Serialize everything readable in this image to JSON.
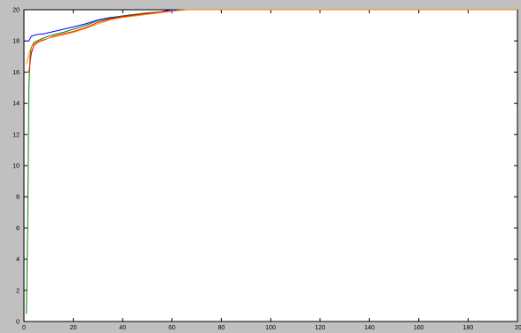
{
  "chart_data": {
    "type": "line",
    "title": "",
    "xlabel": "",
    "ylabel": "",
    "xlim": [
      0,
      200
    ],
    "ylim": [
      0,
      20
    ],
    "xticks": [
      0,
      20,
      40,
      60,
      80,
      100,
      120,
      140,
      160,
      180,
      200
    ],
    "yticks": [
      0,
      2,
      4,
      6,
      8,
      10,
      12,
      14,
      16,
      18,
      20
    ],
    "grid": false,
    "legend": "none",
    "series": [
      {
        "color": "#0000ff",
        "x": [
          1,
          2,
          3,
          5,
          8,
          12,
          16,
          20,
          25,
          30,
          35,
          40,
          45,
          50,
          55,
          58,
          60,
          65,
          70,
          75,
          80,
          200
        ],
        "y": [
          18.0,
          18.0,
          18.3,
          18.4,
          18.45,
          18.6,
          18.75,
          18.9,
          19.1,
          19.35,
          19.5,
          19.6,
          19.7,
          19.75,
          19.85,
          19.95,
          20.0,
          20.0,
          20.0,
          20.0,
          20.0,
          20.0
        ]
      },
      {
        "color": "#008000",
        "x": [
          1,
          1.5,
          2,
          2.5,
          3,
          4,
          6,
          8,
          12,
          16,
          20,
          25,
          30,
          35,
          40,
          45,
          50,
          55,
          60,
          63,
          65,
          200
        ],
        "y": [
          0.5,
          6.0,
          15.0,
          17.0,
          17.6,
          17.9,
          18.05,
          18.2,
          18.4,
          18.55,
          18.75,
          19.0,
          19.3,
          19.45,
          19.6,
          19.7,
          19.8,
          19.85,
          19.9,
          20.0,
          20.0,
          20.0
        ]
      },
      {
        "color": "#ff0000",
        "x": [
          1,
          1.5,
          2,
          3,
          4,
          6,
          8,
          12,
          16,
          20,
          25,
          30,
          35,
          40,
          45,
          50,
          55,
          60,
          64,
          66,
          200
        ],
        "y": [
          16.0,
          16.0,
          16.0,
          17.2,
          17.7,
          17.95,
          18.05,
          18.3,
          18.45,
          18.6,
          18.85,
          19.2,
          19.4,
          19.55,
          19.65,
          19.75,
          19.85,
          19.92,
          19.97,
          20.0,
          20.0
        ]
      },
      {
        "color": "#ff8c00",
        "x": [
          1,
          2,
          3,
          4,
          6,
          8,
          12,
          16,
          20,
          25,
          30,
          35,
          40,
          45,
          50,
          55,
          60,
          65,
          200
        ],
        "y": [
          16.5,
          17.2,
          17.6,
          17.8,
          18.0,
          18.1,
          18.25,
          18.4,
          18.55,
          18.8,
          19.1,
          19.35,
          19.5,
          19.6,
          19.7,
          19.8,
          19.9,
          20.0,
          20.0
        ]
      }
    ]
  }
}
